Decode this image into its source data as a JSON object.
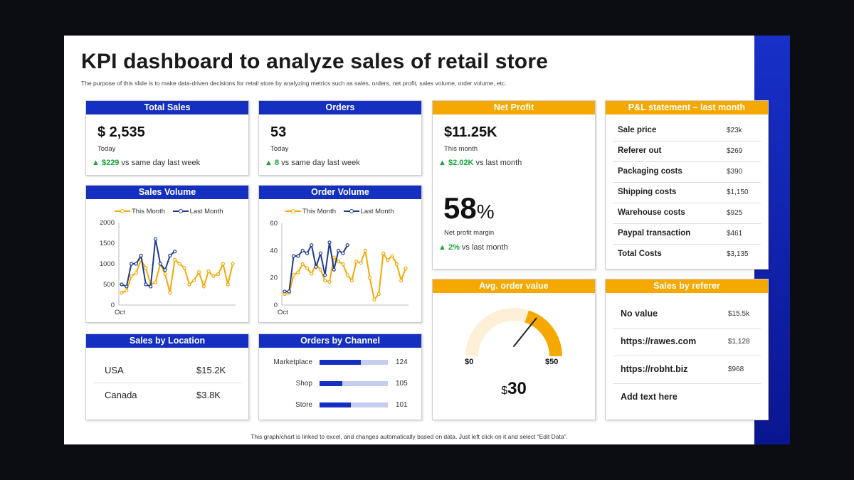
{
  "title": "KPI dashboard to analyze sales of retail store",
  "subtitle": "The purpose of this slide is to make data-driven decisions for retail store by analyzing metrics such as sales, orders, net profit, sales volume, order volume, etc.",
  "footer": "This graph/chart is linked to excel,  and changes automatically based on data. Just left click on it and select “Edit Data”.",
  "colors": {
    "blue": "#1530c0",
    "orange": "#f5a800",
    "green": "#1aa53a",
    "accent": "#1830c8"
  },
  "total_sales": {
    "title": "Total Sales",
    "value": "$ 2,535",
    "period": "Today",
    "arrow": "▲",
    "delta": "$229",
    "delta_text": "vs same day last week"
  },
  "orders": {
    "title": "Orders",
    "value": "53",
    "period": "Today",
    "arrow": "▲",
    "delta": "8",
    "delta_text": "vs same day last week"
  },
  "net_profit": {
    "title": "Net Profit",
    "value": "$11.25K",
    "period": "This month",
    "arrow": "▲",
    "delta": "$2.02K",
    "delta_text": "vs last month",
    "margin_value": "58",
    "margin_unit": "%",
    "margin_label": "Net profit margin",
    "margin_delta": "2%",
    "margin_delta_text": "vs last month"
  },
  "pl_statement": {
    "title": "P&L statement – last month",
    "rows": [
      {
        "label": "Sale price",
        "value": "$23k"
      },
      {
        "label": "Referer out",
        "value": "$269"
      },
      {
        "label": "Packaging costs",
        "value": "$390"
      },
      {
        "label": "Shipping costs",
        "value": "$1,150"
      },
      {
        "label": "Warehouse costs",
        "value": "$925"
      },
      {
        "label": "Paypal transaction",
        "value": "$461"
      },
      {
        "label": "Total Costs",
        "value": "$3,135"
      }
    ]
  },
  "sales_volume": {
    "title": "Sales Volume",
    "legend_this": "This Month",
    "legend_last": "Last Month"
  },
  "order_volume": {
    "title": "Order Volume",
    "legend_this": "This Month",
    "legend_last": "Last Month"
  },
  "sales_by_location": {
    "title": "Sales by Location",
    "rows": [
      {
        "label": "USA",
        "value": "$15.2K"
      },
      {
        "label": "Canada",
        "value": "$3.8K"
      }
    ]
  },
  "orders_by_channel": {
    "title": "Orders by Channel",
    "rows": [
      {
        "label": "Marketplace",
        "value": "124"
      },
      {
        "label": "Shop",
        "value": "105"
      },
      {
        "label": "Store",
        "value": "101"
      }
    ]
  },
  "avg_order_value": {
    "title": "Avg. order value",
    "min_label": "$0",
    "max_label": "$50",
    "value_symbol": "$",
    "value": "30"
  },
  "sales_by_referer": {
    "title": "Sales by referer",
    "rows": [
      {
        "label": "No value",
        "value": "$15.5k"
      },
      {
        "label": "https://rawes.com",
        "value": "$1,128"
      },
      {
        "label": "https://robht.biz",
        "value": "$968"
      },
      {
        "label": "Add text  here",
        "value": ""
      }
    ]
  },
  "chart_data": [
    {
      "type": "line",
      "title": "Sales Volume",
      "ylim": [
        0,
        2000
      ],
      "y_ticks": [
        "0",
        "500",
        "1000",
        "1500",
        "2000"
      ],
      "x_label": "Oct",
      "grid": false,
      "legend": "top",
      "series": [
        {
          "name": "This Month",
          "color": "#f5a800",
          "values": [
            300,
            350,
            700,
            780,
            1100,
            900,
            500,
            550,
            1000,
            750,
            300,
            1100,
            1000,
            900,
            500,
            600,
            800,
            450,
            820,
            700,
            750,
            1000,
            500,
            1000
          ]
        },
        {
          "name": "Last Month",
          "color": "#1f3b8f",
          "values": [
            500,
            450,
            1000,
            1000,
            1200,
            500,
            450,
            1600,
            1000,
            850,
            1200,
            1300
          ]
        }
      ]
    },
    {
      "type": "line",
      "title": "Order Volume",
      "ylim": [
        0,
        60
      ],
      "y_ticks": [
        "0",
        "20",
        "40",
        "60"
      ],
      "x_label": "Oct",
      "grid": false,
      "legend": "top",
      "series": [
        {
          "name": "This Month",
          "color": "#f5a800",
          "values": [
            8,
            9,
            22,
            24,
            30,
            27,
            23,
            30,
            26,
            18,
            17,
            35,
            32,
            30,
            22,
            18,
            32,
            31,
            40,
            20,
            4,
            8,
            38,
            33,
            36,
            30,
            18,
            27
          ]
        },
        {
          "name": "Last Month",
          "color": "#1f3b8f",
          "values": [
            10,
            10,
            36,
            36,
            40,
            38,
            44,
            28,
            38,
            22,
            46,
            26,
            40,
            38,
            44
          ]
        }
      ]
    },
    {
      "type": "bar",
      "title": "Orders by Channel",
      "orientation": "horizontal",
      "categories": [
        "Marketplace",
        "Shop",
        "Store"
      ],
      "values": [
        124,
        105,
        101
      ],
      "share": [
        0.6,
        0.33,
        0.46
      ]
    },
    {
      "type": "gauge",
      "title": "Avg. order value",
      "min": 0,
      "max": 50,
      "value": 30
    }
  ]
}
